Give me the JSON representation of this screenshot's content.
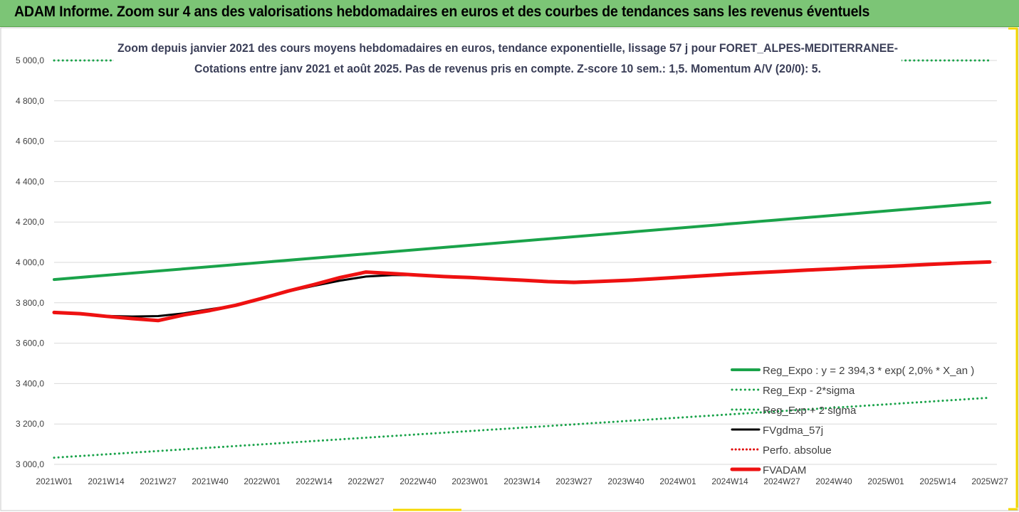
{
  "banner": {
    "title": "ADAM Informe. Zoom sur 4 ans des valorisations hebdomadaires en euros et des courbes de tendances sans les revenus éventuels"
  },
  "colors": {
    "banner_bg": "#7cc576",
    "reg_expo": "#1aa34a",
    "reg_band": "#1aa34a",
    "fvgdma": "#000000",
    "perfo": "#e00000",
    "fvadam": "#ee1111",
    "frame_accent": "#f5d800"
  },
  "chart_data": {
    "type": "line",
    "title_lines": [
      "Zoom depuis janvier 2021 des cours moyens hebdomadaires en euros, tendance exponentielle, lissage 57 j pour FORET_ALPES-MEDITERRANEE-",
      "Cotations entre janv 2021 et août 2025.  Pas de revenus pris en compte. Z-score 10 sem.: 1,5. Momentum A/V (20/0): 5."
    ],
    "ylim": [
      3000,
      5000
    ],
    "y_ticks": [
      "3 000,0",
      "3 200,0",
      "3 400,0",
      "3 600,0",
      "3 800,0",
      "4 000,0",
      "4 200,0",
      "4 400,0",
      "4 600,0",
      "4 800,0",
      "5 000,0"
    ],
    "y_tick_values": [
      3000,
      3200,
      3400,
      3600,
      3800,
      4000,
      4200,
      4400,
      4600,
      4800,
      5000
    ],
    "x_ticks": [
      "2021W01",
      "2021W14",
      "2021W27",
      "2021W40",
      "2022W01",
      "2022W14",
      "2022W27",
      "2022W40",
      "2023W01",
      "2023W14",
      "2023W27",
      "2023W40",
      "2024W01",
      "2024W14",
      "2024W27",
      "2024W40",
      "2025W01",
      "2025W14",
      "2025W27"
    ],
    "grid": "horizontal",
    "legend_position": "bottom-right",
    "series": [
      {
        "name": "Reg_Expo : y = 2 394,3 * exp( 2,0% *  X_an )",
        "style": "solid-thick",
        "points": [
          [
            0,
            3915
          ],
          [
            18,
            4297
          ]
        ]
      },
      {
        "name": "Reg_Exp - 2*sigma",
        "style": "dotted",
        "points": [
          [
            0,
            3033
          ],
          [
            18,
            3330
          ]
        ]
      },
      {
        "name": "Reg_Exp + 2 sigma",
        "style": "dotted",
        "points": [
          [
            0,
            5000
          ],
          [
            1.2,
            5000
          ],
          [
            17.3,
            5000
          ],
          [
            18,
            5000
          ]
        ]
      },
      {
        "name": "FVgdma_57j",
        "style": "solid",
        "points": [
          [
            0,
            3752
          ],
          [
            0.5,
            3746
          ],
          [
            1,
            3735
          ],
          [
            1.5,
            3732
          ],
          [
            2,
            3734
          ],
          [
            2.5,
            3748
          ],
          [
            3,
            3768
          ],
          [
            3.5,
            3787
          ],
          [
            4,
            3825
          ],
          [
            4.5,
            3856
          ],
          [
            5,
            3884
          ],
          [
            5.5,
            3910
          ],
          [
            6,
            3930
          ],
          [
            6.5,
            3937
          ],
          [
            7,
            3937
          ],
          [
            7.5,
            3932
          ],
          [
            8,
            3925
          ],
          [
            8.5,
            3920
          ],
          [
            9,
            3913
          ],
          [
            9.5,
            3907
          ],
          [
            10,
            3905
          ],
          [
            10.5,
            3907
          ],
          [
            11,
            3911
          ],
          [
            11.5,
            3918
          ],
          [
            12,
            3926
          ],
          [
            12.5,
            3934
          ],
          [
            13,
            3942
          ],
          [
            13.5,
            3949
          ],
          [
            14,
            3955
          ],
          [
            14.5,
            3962
          ],
          [
            15,
            3968
          ],
          [
            15.5,
            3975
          ],
          [
            16,
            3980
          ],
          [
            16.5,
            3986
          ],
          [
            17,
            3992
          ],
          [
            17.5,
            3998
          ],
          [
            18,
            4002
          ]
        ]
      },
      {
        "name": "Perfo. absolue",
        "style": "dotted",
        "points": []
      },
      {
        "name": "FVADAM",
        "style": "solid-thick",
        "points": [
          [
            0,
            3752
          ],
          [
            0.5,
            3746
          ],
          [
            1,
            3733
          ],
          [
            1.5,
            3722
          ],
          [
            2,
            3712
          ],
          [
            2.5,
            3740
          ],
          [
            3,
            3762
          ],
          [
            3.5,
            3788
          ],
          [
            4,
            3822
          ],
          [
            4.5,
            3858
          ],
          [
            5,
            3890
          ],
          [
            5.5,
            3925
          ],
          [
            6,
            3952
          ],
          [
            6.5,
            3945
          ],
          [
            7,
            3937
          ],
          [
            7.5,
            3930
          ],
          [
            8,
            3925
          ],
          [
            8.5,
            3918
          ],
          [
            9,
            3912
          ],
          [
            9.5,
            3905
          ],
          [
            10,
            3901
          ],
          [
            10.5,
            3906
          ],
          [
            11,
            3911
          ],
          [
            11.5,
            3918
          ],
          [
            12,
            3926
          ],
          [
            12.5,
            3934
          ],
          [
            13,
            3942
          ],
          [
            13.5,
            3949
          ],
          [
            14,
            3955
          ],
          [
            14.5,
            3962
          ],
          [
            15,
            3968
          ],
          [
            15.5,
            3975
          ],
          [
            16,
            3980
          ],
          [
            16.5,
            3986
          ],
          [
            17,
            3992
          ],
          [
            17.5,
            3998
          ],
          [
            18,
            4002
          ]
        ]
      }
    ]
  }
}
